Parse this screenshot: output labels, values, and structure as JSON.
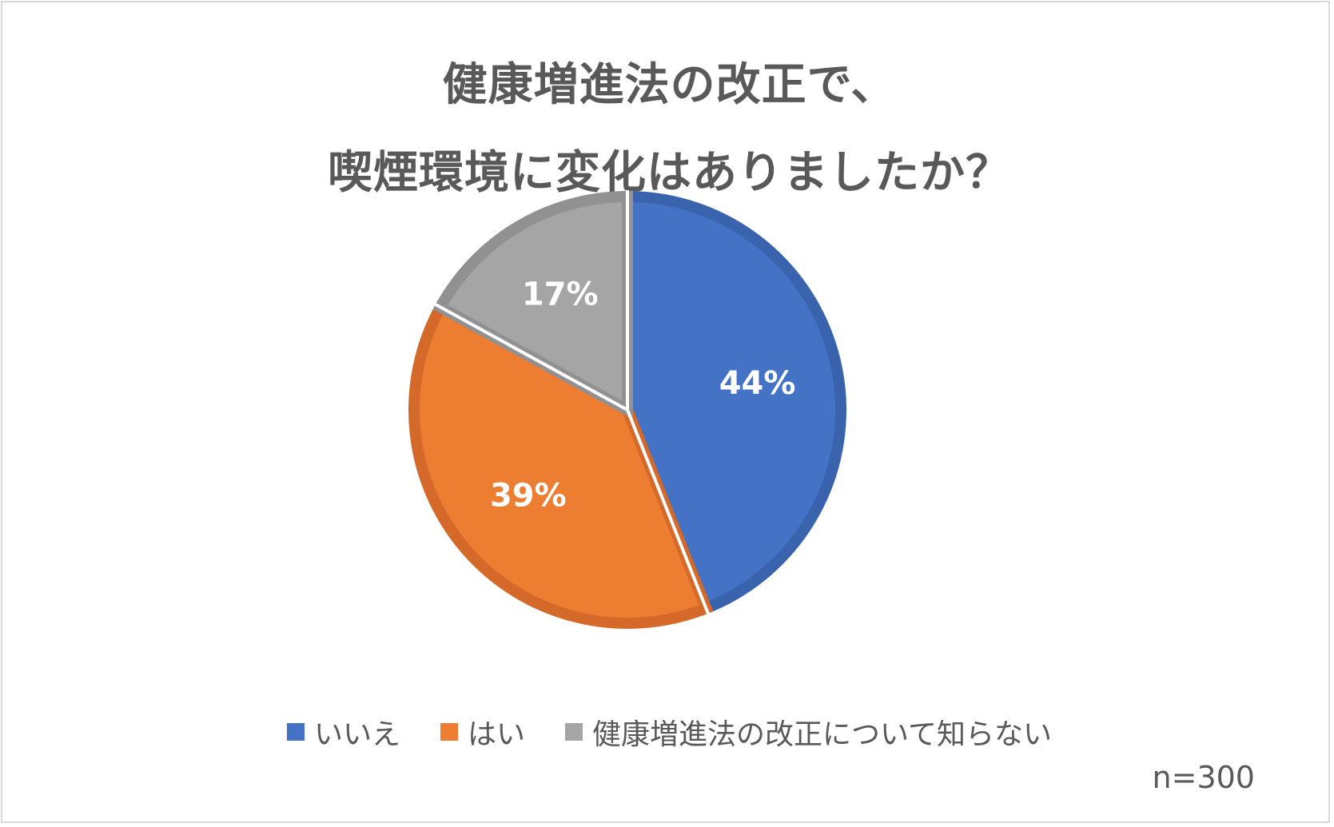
{
  "chart_data": {
    "type": "pie",
    "title_lines": [
      "健康増進法の改正で、",
      "喫煙環境に変化はありましたか？"
    ],
    "categories": [
      "いいえ",
      "はい",
      "健康増進法の改正について知らない"
    ],
    "values": [
      44,
      39,
      17
    ],
    "value_labels": [
      "44%",
      "39%",
      "17%"
    ],
    "colors": [
      "#4472C4",
      "#ED7D31",
      "#A5A5A5"
    ],
    "border_colors": [
      "#3A63AE",
      "#D4692A",
      "#919191"
    ],
    "start_angle_deg": 0,
    "direction": "clockwise",
    "legend_position": "bottom",
    "note": "n=300"
  }
}
